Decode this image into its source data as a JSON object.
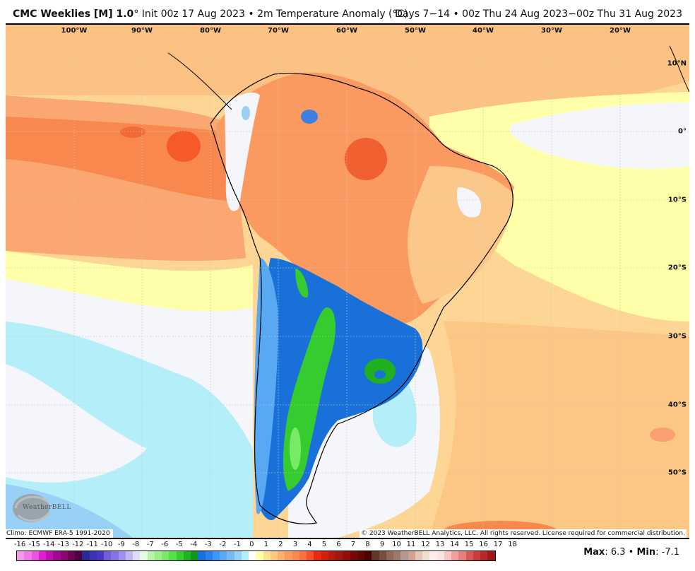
{
  "header": {
    "model": "CMC Weeklies [M] 1.0",
    "degree": "°",
    "init": "Init 00z 17 Aug 2023",
    "separator": "•",
    "field": "2m Temperature Anomaly (°C)",
    "valid": "Days 7−14 • 00z Thu 24 Aug 2023−00z Thu 31 Aug 2023"
  },
  "map": {
    "region": "South America",
    "lon_labels": [
      "100°W",
      "90°W",
      "80°W",
      "70°W",
      "60°W",
      "50°W",
      "40°W",
      "30°W",
      "20°W"
    ],
    "lat_labels": [
      "10°N",
      "0°",
      "10°S",
      "20°S",
      "30°S",
      "40°S",
      "50°S"
    ],
    "climo": "Climo: ECMWF ERA-5 1991-2020",
    "copyright": "© 2023 WeatherBELL Analytics, LLC. All rights reserved. License required for commercial distribution.",
    "logo_text": "WeatherBELL"
  },
  "colorbar": {
    "labels": [
      "-16",
      "-15",
      "-14",
      "-13",
      "-12",
      "-11",
      "-10",
      "-9",
      "-8",
      "-7",
      "-6",
      "-5",
      "-4",
      "-3",
      "-2",
      "-1",
      "0",
      "1",
      "2",
      "3",
      "4",
      "5",
      "6",
      "7",
      "8",
      "9",
      "10",
      "11",
      "12",
      "13",
      "14",
      "15",
      "16",
      "17",
      "18"
    ],
    "colors": [
      "#f59ae8",
      "#f078e6",
      "#ea55de",
      "#e020d0",
      "#c010b0",
      "#a00890",
      "#880870",
      "#6c0458",
      "#500040",
      "#2a2a98",
      "#3a34b4",
      "#4a36c4",
      "#7060d8",
      "#8474e6",
      "#a090f0",
      "#c0b4f4",
      "#dcdcf8",
      "#e4fce4",
      "#b6f2a8",
      "#98ee88",
      "#78ea68",
      "#56e048",
      "#36cc30",
      "#20b020",
      "#10981a",
      "#1870d8",
      "#2a80ec",
      "#3c98f4",
      "#58a8f4",
      "#78b8f4",
      "#98d0f6",
      "#b4eef8",
      "#ffffff",
      "#ffffa8",
      "#fee090",
      "#fec880",
      "#feb070",
      "#fe9a60",
      "#fc8850",
      "#fa7040",
      "#f8502a",
      "#e82810",
      "#d02010",
      "#b81a10",
      "#a01810",
      "#901008",
      "#780808",
      "#600808",
      "#500000",
      "#603828",
      "#785038",
      "#906858",
      "#a07868",
      "#b49890",
      "#d4a090",
      "#e4c4b8",
      "#ece0c8",
      "#feecec",
      "#fce4e4",
      "#f8c4c4",
      "#f0a0a0",
      "#e88080",
      "#d85858",
      "#c83c3c",
      "#b82828",
      "#a01818"
    ]
  },
  "stats": {
    "max_label": "Max",
    "max_value": ": 6.3",
    "sep": " • ",
    "min_label": "Min",
    "min_value": ": -7.1"
  }
}
